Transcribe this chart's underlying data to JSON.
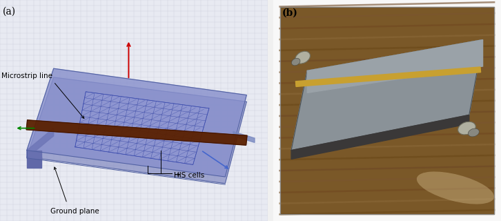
{
  "panel_a_label": "(a)",
  "panel_b_label": "(b)",
  "label_microstrip": "Microstrip line",
  "label_his_cells": "HIS cells",
  "label_ground": "Ground plane",
  "background_color": "#f0f0f0",
  "fig_width": 7.26,
  "fig_height": 3.2,
  "dpi": 100,
  "grid_bg": "#e8eaf2",
  "board_top_color": "#9099cc",
  "board_side_color": "#6870a8",
  "board_front_color": "#7880b8",
  "his_line_color": "#3848a8",
  "microstrip_color": "#5a2000",
  "wood_bg": "#8b6535",
  "pcb_gray_top": "#8a9098",
  "pcb_gray_bottom": "#6a7078",
  "copper_strip": "#c8a030",
  "connector_color": "#a8a8a8"
}
